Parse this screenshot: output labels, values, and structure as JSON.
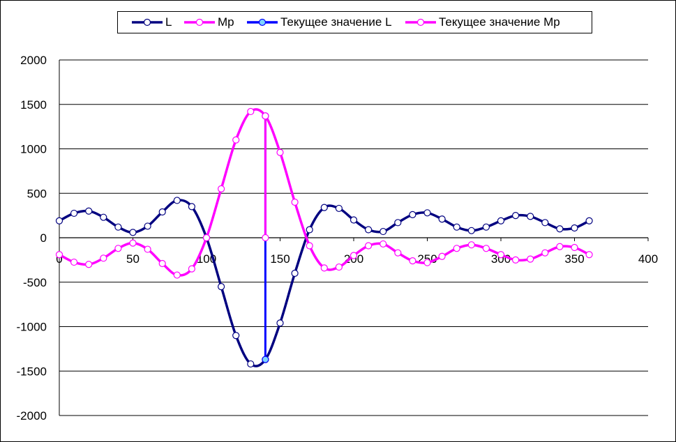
{
  "chart_data": {
    "type": "line",
    "title": "",
    "xlabel": "",
    "ylabel": "",
    "xlim": [
      0,
      400
    ],
    "ylim": [
      -2000,
      2000
    ],
    "x_ticks": [
      "0",
      "50",
      "100",
      "150",
      "200",
      "250",
      "300",
      "350",
      "400"
    ],
    "y_ticks": [
      "2000",
      "1500",
      "1000",
      "500",
      "0",
      "-500",
      "-1000",
      "-1500",
      "-2000"
    ],
    "grid": "horizontal",
    "legend_position": "top",
    "x": [
      0,
      10,
      20,
      30,
      40,
      50,
      60,
      70,
      80,
      90,
      100,
      110,
      120,
      130,
      140,
      150,
      160,
      170,
      180,
      190,
      200,
      210,
      220,
      230,
      240,
      250,
      260,
      270,
      280,
      290,
      300,
      310,
      320,
      330,
      340,
      350,
      360
    ],
    "series": [
      {
        "name": "L",
        "color": "#000080",
        "marker_fill": "#ffffff",
        "values": [
          190,
          275,
          300,
          230,
          120,
          60,
          130,
          290,
          420,
          350,
          0,
          -550,
          -1100,
          -1420,
          -1370,
          -960,
          -400,
          90,
          340,
          330,
          200,
          90,
          70,
          170,
          260,
          280,
          210,
          120,
          80,
          120,
          190,
          250,
          240,
          170,
          100,
          110,
          190
        ]
      },
      {
        "name": "Mp",
        "color": "#ff00ff",
        "marker_fill": "#ffffff",
        "values": [
          -190,
          -275,
          -300,
          -230,
          -120,
          -60,
          -130,
          -290,
          -420,
          -350,
          0,
          550,
          1100,
          1420,
          1370,
          960,
          400,
          -90,
          -340,
          -330,
          -200,
          -90,
          -70,
          -170,
          -260,
          -280,
          -210,
          -120,
          -80,
          -120,
          -190,
          -250,
          -240,
          -170,
          -100,
          -110,
          -190
        ]
      },
      {
        "name": "Текущее значение L",
        "color": "#0000ff",
        "marker_fill": "#7fd4ff",
        "x": [
          140,
          140
        ],
        "values": [
          1370,
          -1370
        ]
      },
      {
        "name": "Текущее значение Mp",
        "color": "#ff00ff",
        "marker_fill": "#ffffff",
        "x": [
          140,
          140
        ],
        "values": [
          0,
          1370
        ]
      }
    ]
  }
}
